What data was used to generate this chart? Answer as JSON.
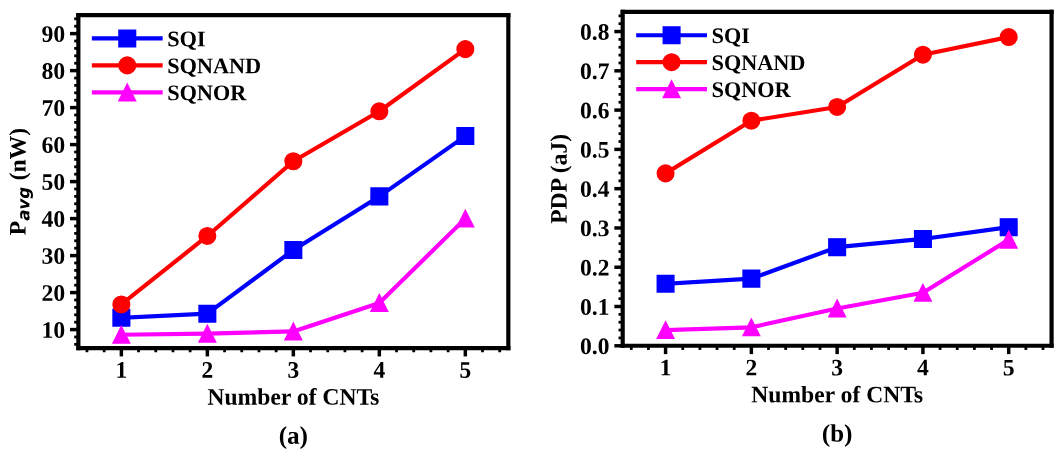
{
  "chart_data": [
    {
      "type": "line",
      "xlabel": "Number of CNTs",
      "ylabel": "P$_{avg}$ (nW)",
      "annotations": [
        "(a)"
      ],
      "x": [
        1,
        2,
        3,
        4,
        5
      ],
      "xlim": [
        0.5,
        5.5
      ],
      "xticks": [
        1,
        2,
        3,
        4,
        5
      ],
      "ylim": [
        5,
        95
      ],
      "yticks": [
        10,
        20,
        30,
        40,
        50,
        60,
        70,
        80,
        90
      ],
      "legend": "top left",
      "grid": false,
      "series": [
        {
          "name": "SQI",
          "color": "#0000ff",
          "marker": "square",
          "values": [
            13.2,
            14.3,
            31.5,
            46,
            62.3
          ]
        },
        {
          "name": "SQNAND",
          "color": "#ff0000",
          "marker": "circle",
          "values": [
            16.8,
            35.3,
            55.5,
            69,
            85.8
          ]
        },
        {
          "name": "SQNOR",
          "color": "#ff00ff",
          "marker": "triangle",
          "values": [
            8.6,
            8.9,
            9.5,
            17.2,
            40
          ]
        }
      ]
    },
    {
      "type": "line",
      "xlabel": "Number of CNTs",
      "ylabel": "PDP (aJ)",
      "annotations": [
        "(b)"
      ],
      "x": [
        1,
        2,
        3,
        4,
        5
      ],
      "xlim": [
        0.5,
        5.5
      ],
      "xticks": [
        1,
        2,
        3,
        4,
        5
      ],
      "ylim": [
        0,
        0.85
      ],
      "yticks": [
        {
          "value": 0,
          "label": "0.0"
        },
        0.1,
        0.2,
        0.3,
        0.4,
        0.5,
        0.6,
        0.7,
        0.8
      ],
      "legend": "top left",
      "grid": false,
      "series": [
        {
          "name": "SQI",
          "color": "#0000ff",
          "marker": "square",
          "values": [
            0.158,
            0.171,
            0.251,
            0.272,
            0.302
          ]
        },
        {
          "name": "SQNAND",
          "color": "#ff0000",
          "marker": "circle",
          "values": [
            0.439,
            0.573,
            0.608,
            0.741,
            0.786
          ]
        },
        {
          "name": "SQNOR",
          "color": "#ff00ff",
          "marker": "triangle",
          "values": [
            0.04,
            0.047,
            0.095,
            0.135,
            0.27
          ]
        }
      ]
    }
  ]
}
